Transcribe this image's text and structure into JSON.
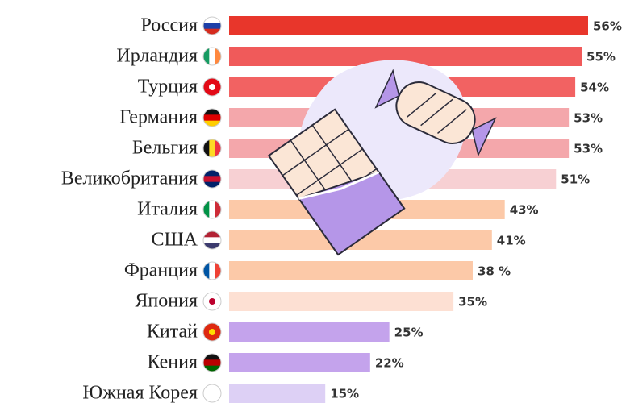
{
  "chart_data": {
    "type": "bar",
    "orientation": "horizontal",
    "categories": [
      "Россия",
      "Ирландия",
      "Турция",
      "Германия",
      "Бельгия",
      "Великобритания",
      "Италия",
      "США",
      "Франция",
      "Япония",
      "Китай",
      "Кения",
      "Южная Корея"
    ],
    "values": [
      56,
      55,
      54,
      53,
      53,
      51,
      43,
      41,
      38,
      35,
      25,
      22,
      15
    ],
    "value_labels": [
      "56%",
      "55%",
      "54%",
      "53%",
      "53%",
      "51%",
      "43%",
      "41%",
      "38 %",
      "35%",
      "25%",
      "22%",
      "15%"
    ],
    "colors": [
      "#e8362b",
      "#f05a5a",
      "#f26262",
      "#f4a7ab",
      "#f4a7ab",
      "#f7d0d3",
      "#fcc9a8",
      "#fcc9a8",
      "#fcc9a8",
      "#fde0d3",
      "#c4a3ec",
      "#c4a3ec",
      "#ddd0f5"
    ]
  }
}
